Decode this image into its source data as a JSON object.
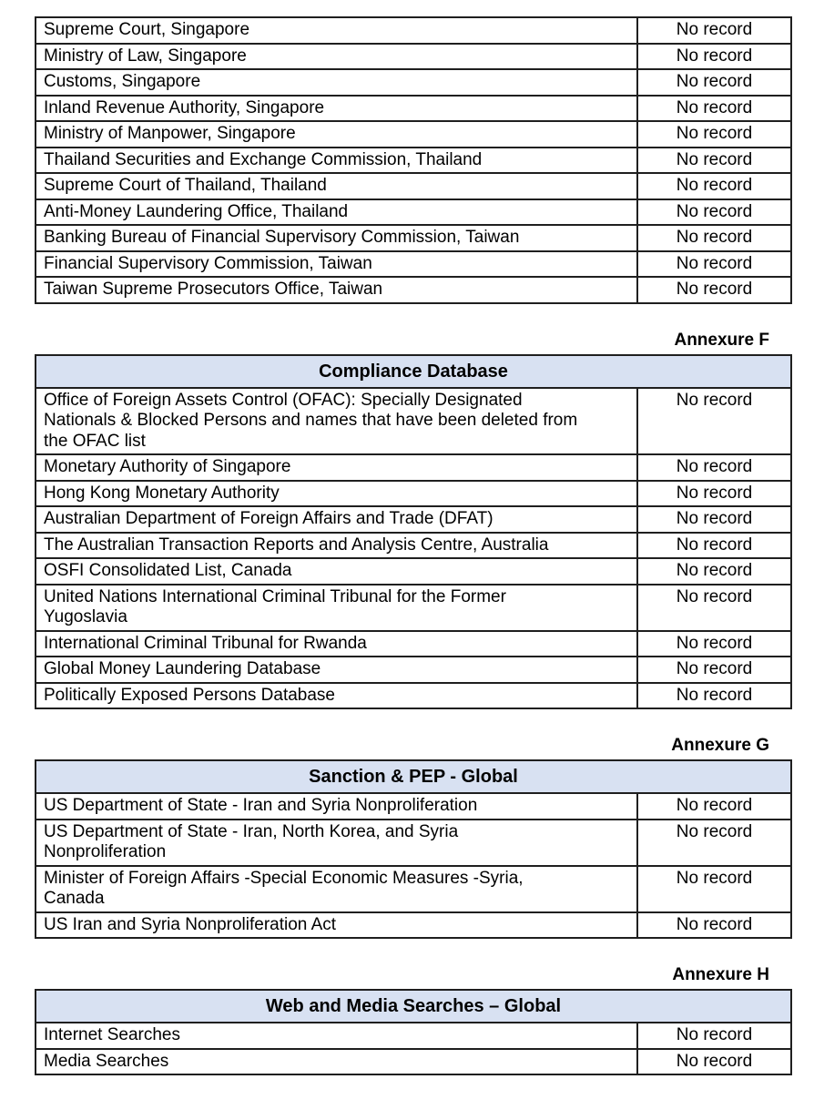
{
  "annexures": {
    "f": {
      "label": "Annexure F"
    },
    "g": {
      "label": "Annexure G"
    },
    "h": {
      "label": "Annexure H"
    }
  },
  "tables": [
    {
      "title": "",
      "rows": [
        {
          "source": "Supreme Court, Singapore",
          "result": "No record"
        },
        {
          "source": "Ministry of Law, Singapore",
          "result": "No record"
        },
        {
          "source": "Customs, Singapore",
          "result": "No record"
        },
        {
          "source": "Inland Revenue Authority, Singapore",
          "result": "No record"
        },
        {
          "source": "Ministry of Manpower, Singapore",
          "result": "No record"
        },
        {
          "source": "Thailand Securities and Exchange Commission, Thailand",
          "result": "No record"
        },
        {
          "source": "Supreme Court of Thailand, Thailand",
          "result": "No record"
        },
        {
          "source": "Anti-Money Laundering Office, Thailand",
          "result": "No record"
        },
        {
          "source": "Banking Bureau of Financial Supervisory Commission, Taiwan",
          "result": "No record"
        },
        {
          "source": "Financial Supervisory Commission, Taiwan",
          "result": "No record"
        },
        {
          "source": "Taiwan Supreme Prosecutors Office, Taiwan",
          "result": "No record"
        }
      ]
    },
    {
      "title": "Compliance Database",
      "rows": [
        {
          "source": "Office of Foreign Assets Control (OFAC): Specially Designated\nNationals & Blocked Persons and names that have been deleted from\nthe OFAC list",
          "result": "No record"
        },
        {
          "source": "Monetary Authority of Singapore",
          "result": "No record"
        },
        {
          "source": "Hong Kong Monetary Authority",
          "result": "No record"
        },
        {
          "source": "Australian Department of Foreign Affairs and Trade (DFAT)",
          "result": "No record"
        },
        {
          "source": "The Australian Transaction Reports and Analysis Centre, Australia",
          "result": "No record"
        },
        {
          "source": "OSFI Consolidated List, Canada",
          "result": "No record"
        },
        {
          "source": "United Nations International Criminal Tribunal for the Former\nYugoslavia",
          "result": "No record"
        },
        {
          "source": "International Criminal Tribunal for Rwanda",
          "result": "No record"
        },
        {
          "source": "Global Money Laundering Database",
          "result": "No record"
        },
        {
          "source": "Politically Exposed Persons Database",
          "result": "No record"
        }
      ]
    },
    {
      "title": "Sanction & PEP - Global",
      "rows": [
        {
          "source": "US Department of State - Iran and Syria Nonproliferation",
          "result": "No record"
        },
        {
          "source": "US Department of State - Iran, North Korea, and Syria\nNonproliferation",
          "result": "No record"
        },
        {
          "source": "Minister of Foreign Affairs -Special Economic Measures -Syria,\nCanada",
          "result": "No record"
        },
        {
          "source": "US Iran and Syria Nonproliferation Act",
          "result": "No record"
        }
      ]
    },
    {
      "title": "Web and Media Searches – Global",
      "rows": [
        {
          "source": "Internet Searches",
          "result": "No record"
        },
        {
          "source": "Media Searches",
          "result": "No record"
        }
      ]
    }
  ],
  "colors": {
    "header_bg": "#d8e1f2",
    "border": "#1f1f1f",
    "text": "#000000"
  }
}
